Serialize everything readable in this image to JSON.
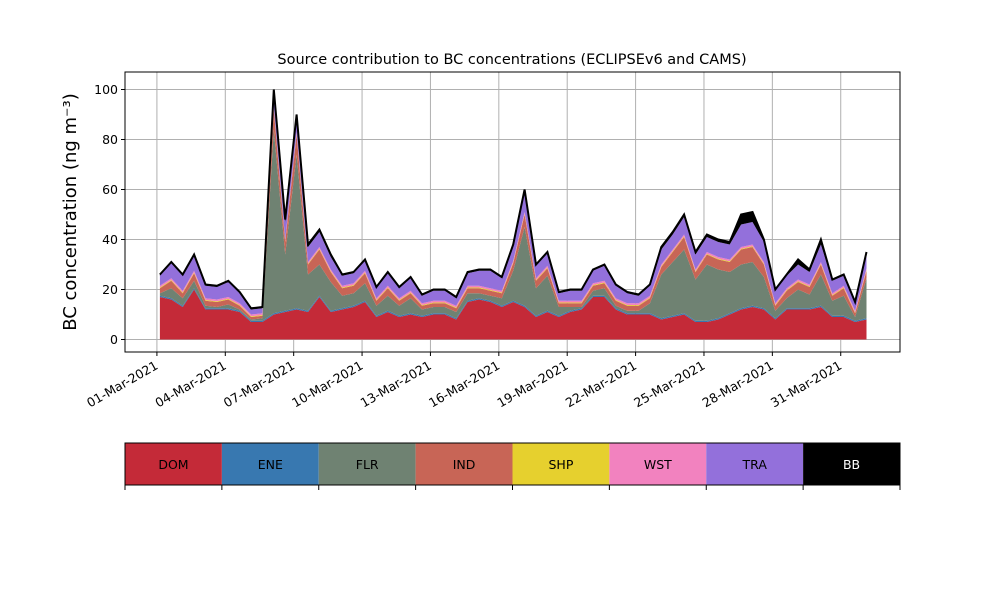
{
  "chart_data": {
    "type": "area",
    "stacked": true,
    "title": "Source contribution to BC concentrations (ECLIPSEv6 and CAMS)",
    "ylabel": "BC concentration (ng m⁻³)",
    "xlabel": "",
    "ylim": [
      -5,
      107
    ],
    "xlim_days_since_01_mar_2021": [
      -1.4,
      32.6
    ],
    "yticks": [
      0,
      20,
      40,
      60,
      80,
      100
    ],
    "xticks": [
      {
        "day": 0,
        "label": "01-Mar-2021"
      },
      {
        "day": 3,
        "label": "04-Mar-2021"
      },
      {
        "day": 6,
        "label": "07-Mar-2021"
      },
      {
        "day": 9,
        "label": "10-Mar-2021"
      },
      {
        "day": 12,
        "label": "13-Mar-2021"
      },
      {
        "day": 15,
        "label": "16-Mar-2021"
      },
      {
        "day": 18,
        "label": "19-Mar-2021"
      },
      {
        "day": 21,
        "label": "22-Mar-2021"
      },
      {
        "day": 24,
        "label": "25-Mar-2021"
      },
      {
        "day": 27,
        "label": "28-Mar-2021"
      },
      {
        "day": 30,
        "label": "31-Mar-2021"
      }
    ],
    "grid": true,
    "x_start_day": 0.13,
    "x_step_days": 0.5,
    "series": [
      {
        "name": "DOM",
        "color": "#c42a38",
        "values": [
          17,
          16,
          13,
          20,
          12,
          12,
          12,
          11,
          7,
          7,
          10,
          11,
          12,
          11,
          17,
          11,
          12,
          13,
          15,
          9,
          11,
          9,
          10,
          9,
          10,
          10,
          8,
          15,
          16,
          15,
          13,
          15,
          13,
          9,
          11,
          9,
          11,
          12,
          17,
          17,
          12,
          10,
          10,
          10,
          8,
          9,
          10,
          7,
          7,
          8,
          10,
          12,
          13,
          12,
          8,
          12,
          12,
          12,
          13,
          9,
          9,
          7,
          8
        ]
      },
      {
        "name": "ENE",
        "color": "#3878b0",
        "values": [
          0.5,
          0.5,
          0.5,
          0.5,
          0.5,
          0.5,
          0.5,
          0.5,
          0.5,
          0.5,
          0.5,
          0.5,
          0.5,
          0.5,
          0.5,
          0.5,
          0.5,
          0.5,
          0.5,
          0.5,
          0.5,
          0.5,
          0.5,
          0.5,
          0.5,
          0.5,
          0.5,
          0.5,
          0.5,
          0.5,
          0.5,
          0.5,
          0.5,
          0.5,
          0.5,
          0.5,
          0.5,
          0.5,
          0.5,
          0.5,
          0.5,
          0.5,
          0.5,
          0.5,
          0.5,
          0.5,
          0.5,
          0.5,
          0.5,
          0.5,
          0.5,
          0.5,
          0.5,
          0.5,
          0.5,
          0.5,
          0.5,
          0.5,
          0.5,
          0.5,
          0.5,
          0.5,
          0.5
        ]
      },
      {
        "name": "FLR",
        "color": "#6f8272",
        "values": [
          1,
          4,
          3,
          3,
          1,
          0.5,
          1.5,
          0.5,
          0.5,
          1,
          73.5,
          22.5,
          61.5,
          14.5,
          12.5,
          11.5,
          5,
          5,
          7,
          4,
          6,
          4,
          6,
          2.5,
          2.5,
          2.5,
          2.5,
          3,
          2,
          2,
          3,
          12,
          31.5,
          11,
          14,
          3.5,
          1.5,
          0.5,
          2,
          3,
          1,
          1,
          1,
          4,
          17.5,
          21.5,
          25.5,
          16.5,
          22.5,
          19.5,
          16.5,
          17.5,
          17.5,
          12.5,
          3,
          4,
          7.5,
          5.5,
          12.5,
          6,
          8,
          1.5,
          16
        ]
      },
      {
        "name": "IND",
        "color": "#c86556",
        "values": [
          2,
          3,
          2,
          3,
          2,
          2,
          2,
          1.5,
          1,
          1,
          8,
          5,
          8,
          4,
          6,
          4,
          3,
          3,
          4,
          2,
          3,
          2,
          2,
          1.5,
          1.5,
          1.5,
          1.5,
          2,
          2,
          2,
          2,
          3,
          5,
          3,
          3,
          1.5,
          1.5,
          1.5,
          2,
          2,
          2,
          2,
          2,
          2,
          3,
          4,
          5,
          3,
          4,
          4,
          4,
          6,
          6,
          5,
          2,
          3,
          3,
          3,
          4,
          2,
          3,
          1.5,
          3
        ]
      },
      {
        "name": "SHP",
        "color": "#e6d02e",
        "values": [
          0.3,
          0.3,
          0.3,
          0.3,
          0.3,
          0.3,
          0.3,
          0.3,
          0.3,
          0.3,
          0.3,
          0.3,
          0.3,
          0.3,
          0.3,
          0.3,
          0.3,
          0.3,
          0.3,
          0.3,
          0.3,
          0.3,
          0.3,
          0.3,
          0.3,
          0.3,
          0.3,
          0.3,
          0.3,
          0.3,
          0.3,
          0.3,
          0.3,
          0.3,
          0.3,
          0.3,
          0.3,
          0.3,
          0.3,
          0.3,
          0.3,
          0.3,
          0.3,
          0.3,
          0.3,
          0.3,
          0.3,
          0.3,
          0.3,
          0.3,
          0.3,
          0.3,
          0.3,
          0.3,
          0.3,
          0.3,
          0.3,
          0.3,
          0.3,
          0.3,
          0.3,
          0.3,
          0.3
        ]
      },
      {
        "name": "WST",
        "color": "#f282bf",
        "values": [
          0.7,
          0.7,
          0.7,
          0.7,
          0.7,
          0.7,
          0.7,
          0.7,
          0.7,
          0.7,
          0.7,
          0.7,
          0.7,
          0.7,
          0.7,
          0.7,
          0.7,
          0.7,
          0.7,
          0.7,
          0.7,
          0.7,
          0.7,
          0.7,
          0.7,
          0.7,
          0.7,
          0.7,
          0.7,
          0.7,
          0.7,
          0.7,
          0.7,
          0.7,
          0.7,
          0.7,
          0.7,
          0.7,
          0.7,
          0.7,
          0.7,
          0.7,
          0.7,
          0.7,
          0.7,
          0.7,
          0.7,
          0.7,
          0.7,
          0.7,
          0.7,
          0.7,
          0.7,
          0.7,
          0.7,
          0.7,
          0.7,
          0.7,
          0.7,
          0.7,
          0.7,
          0.7,
          0.7
        ]
      },
      {
        "name": "TRA",
        "color": "#9370db",
        "values": [
          4,
          6,
          6,
          6,
          5,
          5,
          6,
          4,
          2,
          2,
          6,
          7,
          6,
          6,
          6,
          5,
          4,
          4,
          4,
          4,
          5,
          4,
          5,
          3,
          4,
          4,
          3,
          5,
          6,
          7,
          5,
          6,
          8,
          5,
          5,
          3,
          4,
          4,
          5,
          6,
          5,
          4,
          3,
          4,
          6,
          6,
          7,
          6,
          6,
          6,
          6,
          9,
          9,
          8,
          5,
          5,
          6,
          5,
          7,
          5,
          4,
          3,
          6
        ]
      },
      {
        "name": "BB",
        "color": "#000000",
        "values": [
          0.5,
          0.5,
          0.5,
          0.5,
          0.5,
          0.5,
          0.5,
          0.5,
          0.5,
          0.5,
          1,
          1,
          1,
          1,
          1,
          1,
          0.5,
          0.5,
          0.5,
          0.5,
          0.5,
          0.5,
          0.5,
          0.5,
          0.5,
          0.5,
          0.5,
          0.5,
          0.5,
          0.5,
          0.5,
          0.5,
          1,
          0.5,
          0.5,
          0.5,
          0.5,
          0.5,
          0.5,
          0.5,
          0.5,
          0.5,
          0.5,
          0.5,
          1,
          1,
          1,
          1,
          1,
          1,
          1,
          4,
          4,
          1,
          0.5,
          0.5,
          2,
          1,
          2,
          0.5,
          0.5,
          0.5,
          0.5
        ]
      }
    ],
    "legend": {
      "placement": "bottom (colorbar)",
      "entries": [
        "DOM",
        "ENE",
        "FLR",
        "IND",
        "SHP",
        "WST",
        "TRA",
        "BB"
      ]
    }
  }
}
